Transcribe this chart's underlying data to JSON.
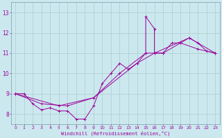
{
  "xlabel": "Windchill (Refroidissement éolien,°C)",
  "ylabel": "",
  "bg_color": "#cce8ef",
  "line_color": "#990099",
  "grid_color": "#aacccc",
  "spine_color": "#7799aa",
  "xlim": [
    -0.5,
    23.5
  ],
  "ylim": [
    7.5,
    13.5
  ],
  "xticks": [
    0,
    1,
    2,
    3,
    4,
    5,
    6,
    7,
    8,
    9,
    10,
    11,
    12,
    13,
    14,
    15,
    16,
    17,
    18,
    19,
    20,
    21,
    22,
    23
  ],
  "yticks": [
    8,
    9,
    10,
    11,
    12,
    13
  ],
  "series": [
    {
      "x": [
        0,
        1,
        2,
        3,
        4,
        5,
        6,
        7,
        8,
        9,
        10,
        11,
        12,
        13,
        14,
        15,
        15,
        16,
        16,
        17,
        18,
        19,
        20,
        21,
        22,
        23
      ],
      "y": [
        9.0,
        9.0,
        8.5,
        8.2,
        8.3,
        8.15,
        8.15,
        7.75,
        7.75,
        8.4,
        9.5,
        10.0,
        10.5,
        10.2,
        10.5,
        11.0,
        12.8,
        12.2,
        11.0,
        11.0,
        11.5,
        11.5,
        11.75,
        11.5,
        11.1,
        11.0
      ]
    },
    {
      "x": [
        0,
        3,
        6,
        9,
        12,
        15,
        17,
        19,
        21,
        23
      ],
      "y": [
        9.0,
        8.5,
        8.4,
        8.8,
        10.0,
        11.0,
        11.0,
        11.5,
        11.2,
        11.0
      ]
    },
    {
      "x": [
        0,
        5,
        9,
        14,
        16,
        20,
        23
      ],
      "y": [
        9.0,
        8.4,
        8.8,
        10.5,
        11.0,
        11.75,
        11.0
      ]
    }
  ]
}
